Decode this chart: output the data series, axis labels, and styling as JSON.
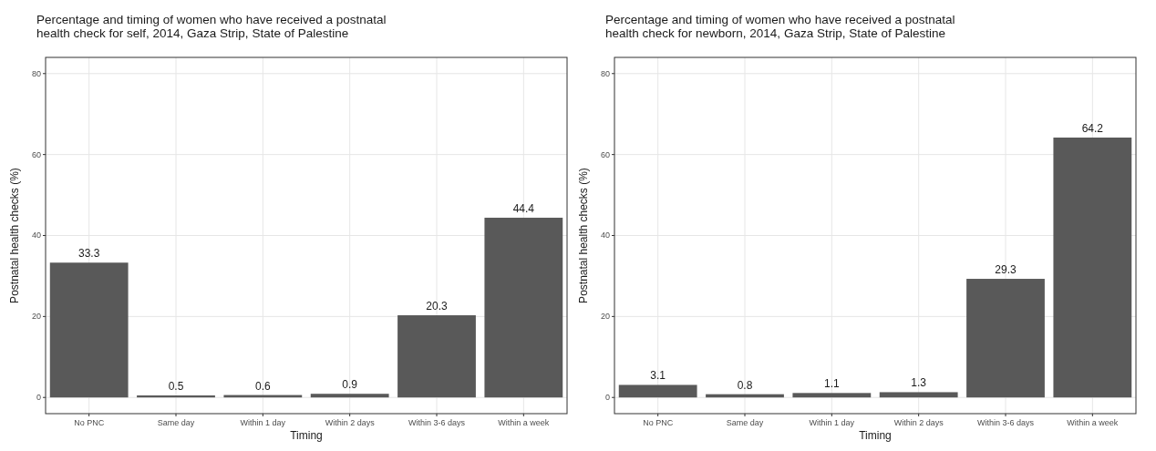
{
  "chart_data": [
    {
      "type": "bar",
      "title": "Percentage and timing of women who have received a postnatal\nhealth check for self, 2014, Gaza Strip, State of Palestine",
      "xlabel": "Timing",
      "ylabel": "Postnatal health checks (%)",
      "categories": [
        "No PNC",
        "Same day",
        "Within 1 day",
        "Within 2 days",
        "Within 3-6 days",
        "Within a week"
      ],
      "values": [
        33.3,
        0.5,
        0.6,
        0.9,
        20.3,
        44.4
      ],
      "color": "#595959",
      "ylim": [
        -4,
        84
      ],
      "yticks": [
        0,
        20,
        40,
        60,
        80
      ],
      "grid": true,
      "data_labels": true
    },
    {
      "type": "bar",
      "title": "Percentage and timing of women who have received a postnatal\nhealth check for newborn, 2014, Gaza Strip, State of Palestine",
      "xlabel": "Timing",
      "ylabel": "Postnatal health checks (%)",
      "categories": [
        "No PNC",
        "Same day",
        "Within 1 day",
        "Within 2 days",
        "Within 3-6 days",
        "Within a week"
      ],
      "values": [
        3.1,
        0.8,
        1.1,
        1.3,
        29.3,
        64.2
      ],
      "color": "#595959",
      "ylim": [
        -4,
        84
      ],
      "yticks": [
        0,
        20,
        40,
        60,
        80
      ],
      "grid": true,
      "data_labels": true
    }
  ]
}
